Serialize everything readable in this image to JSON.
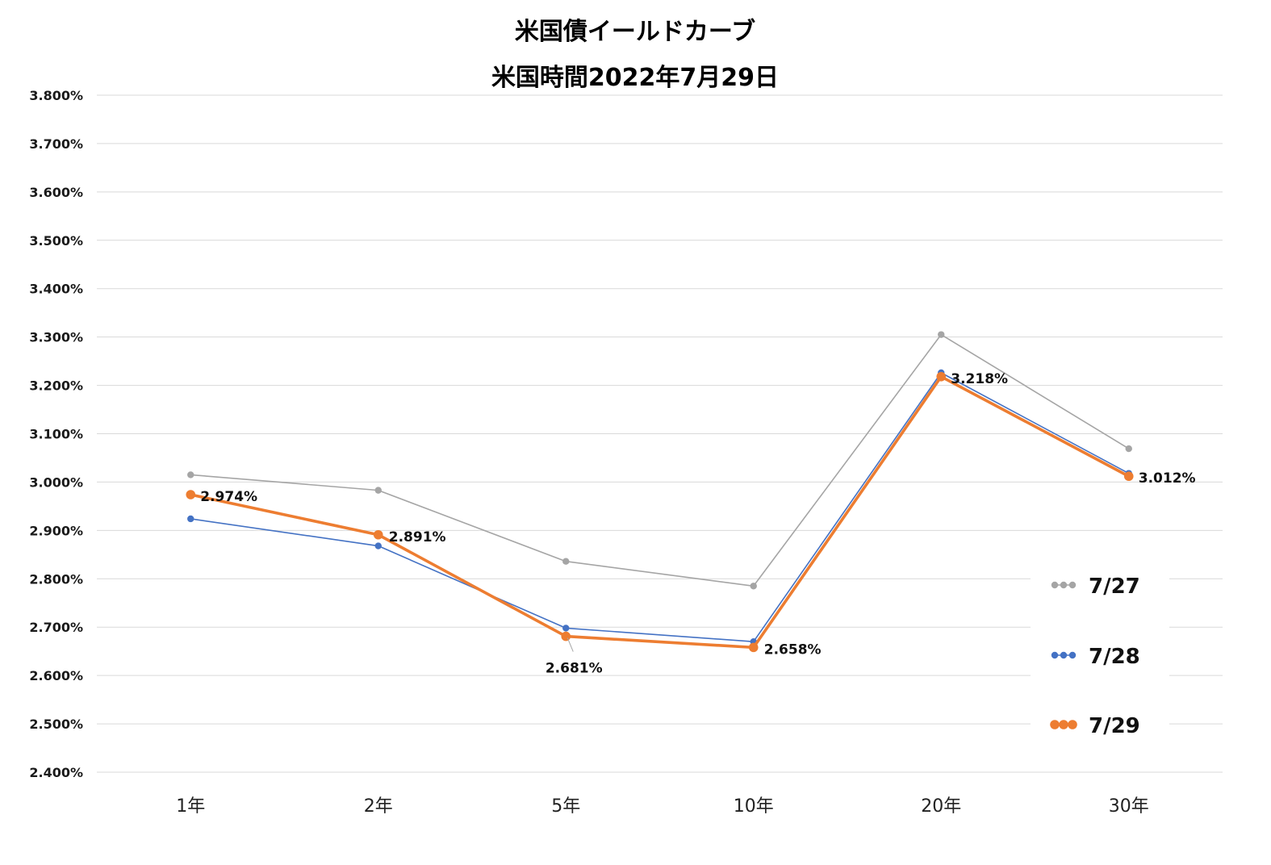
{
  "chart_data": {
    "type": "line",
    "title": [
      "米国債イールドカーブ",
      "米国時間2022年7月29日"
    ],
    "categories": [
      "1年",
      "2年",
      "5年",
      "10年",
      "20年",
      "30年"
    ],
    "ylim": [
      2.4,
      3.8
    ],
    "ytick_step": 0.1,
    "y_tick_labels": [
      "3.800%",
      "3.700%",
      "3.600%",
      "3.500%",
      "3.400%",
      "3.300%",
      "3.200%",
      "3.100%",
      "3.000%",
      "2.900%",
      "2.800%",
      "2.700%",
      "2.600%",
      "2.500%",
      "2.400%"
    ],
    "grid": true,
    "legend_position": "right",
    "series": [
      {
        "name": "7/27",
        "color": "#a5a5a5",
        "values": [
          3.015,
          2.983,
          2.836,
          2.785,
          3.305,
          3.069
        ]
      },
      {
        "name": "7/28",
        "color": "#4472c4",
        "values": [
          2.924,
          2.868,
          2.698,
          2.67,
          3.226,
          3.018
        ]
      },
      {
        "name": "7/29",
        "color": "#ed7d31",
        "values": [
          2.974,
          2.891,
          2.681,
          2.658,
          3.218,
          3.012
        ],
        "data_labels": [
          "2.974%",
          "2.891%",
          "2.681%",
          "2.658%",
          "3.218%",
          "3.012%"
        ]
      }
    ]
  }
}
